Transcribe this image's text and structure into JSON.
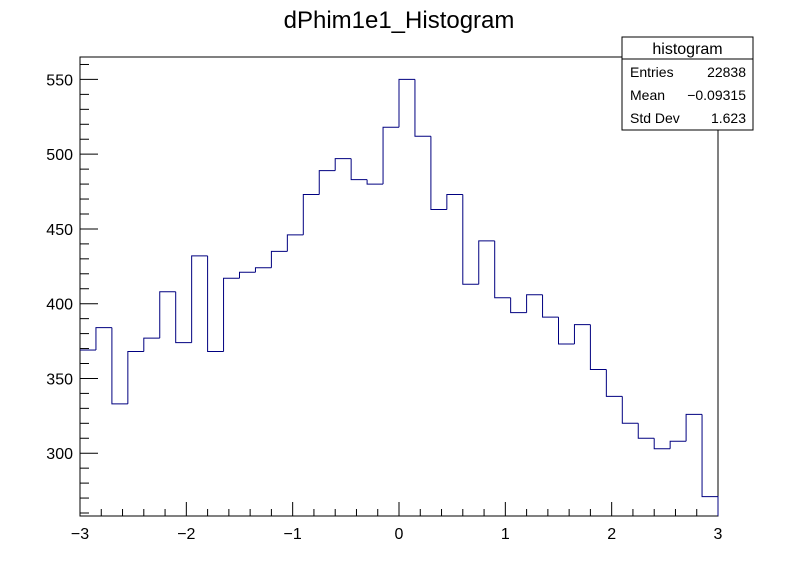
{
  "chart_data": {
    "type": "bar",
    "style": "step-histogram",
    "title": "dPhim1e1_Histogram",
    "xlabel": "",
    "ylabel": "",
    "xlim": [
      -3,
      3
    ],
    "ylim": [
      258,
      565
    ],
    "bin_width": 0.15,
    "x_major_ticks": [
      -3,
      -2,
      -1,
      0,
      1,
      2,
      3
    ],
    "x_tick_labels": [
      "−3",
      "−2",
      "−1",
      "0",
      "1",
      "2",
      "3"
    ],
    "y_major_ticks": [
      300,
      350,
      400,
      450,
      500,
      550
    ],
    "y_tick_labels": [
      "300",
      "350",
      "400",
      "450",
      "500",
      "550"
    ],
    "grid": false,
    "line_color": "#000080",
    "bin_edges": [
      -3.0,
      -2.85,
      -2.7,
      -2.55,
      -2.4,
      -2.25,
      -2.1,
      -1.95,
      -1.8,
      -1.65,
      -1.5,
      -1.35,
      -1.2,
      -1.05,
      -0.9,
      -0.75,
      -0.6,
      -0.45,
      -0.3,
      -0.15,
      0.0,
      0.15,
      0.3,
      0.45,
      0.6,
      0.75,
      0.9,
      1.05,
      1.2,
      1.35,
      1.5,
      1.65,
      1.8,
      1.95,
      2.1,
      2.25,
      2.4,
      2.55,
      2.7,
      2.85,
      3.0
    ],
    "values": [
      369,
      384,
      333,
      368,
      377,
      408,
      374,
      432,
      368,
      417,
      421,
      424,
      435,
      446,
      473,
      489,
      497,
      483,
      480,
      518,
      550,
      512,
      463,
      473,
      413,
      442,
      404,
      394,
      406,
      391,
      373,
      386,
      356,
      338,
      320,
      310,
      303,
      308,
      326,
      271
    ]
  },
  "stats_box": {
    "title": "histogram",
    "rows": [
      {
        "label": "Entries",
        "value": "22838"
      },
      {
        "label": "Mean",
        "value": "−0.09315"
      },
      {
        "label": "Std Dev",
        "value": "1.623"
      }
    ]
  }
}
